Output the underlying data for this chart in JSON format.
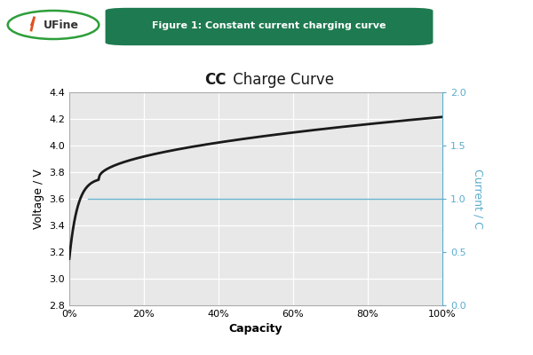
{
  "title_cc": "CC",
  "title_rest": " Charge Curve",
  "xlabel": "Capacity",
  "ylabel_left": "Voltage / V",
  "ylabel_right": "Current / C",
  "ylim_left": [
    2.8,
    4.4
  ],
  "ylim_right": [
    0.0,
    2.0
  ],
  "xlim": [
    0.0,
    1.0
  ],
  "yticks_left": [
    2.8,
    3.0,
    3.2,
    3.4,
    3.6,
    3.8,
    4.0,
    4.2,
    4.4
  ],
  "yticks_right": [
    0.0,
    0.5,
    1.0,
    1.5,
    2.0
  ],
  "xticks": [
    0.0,
    0.2,
    0.4,
    0.6,
    0.8,
    1.0
  ],
  "xtick_labels": [
    "0%",
    "20%",
    "40%",
    "60%",
    "80%",
    "100%"
  ],
  "voltage_color": "#1a1a1a",
  "current_color": "#5aaccc",
  "current_value": 1.0,
  "figure_label": "Figure 1: Constant current charging curve",
  "label_bg_color": "#1e7a50",
  "label_text_color": "#ffffff",
  "plot_bg_color": "#e8e8e8",
  "fig_bg_color": "#ffffff",
  "grid_color": "#ffffff",
  "title_fontsize": 12,
  "axis_label_fontsize": 9,
  "tick_fontsize": 8,
  "logo_ellipse_color": "#2d9e3a",
  "logo_text_color": "#333333"
}
